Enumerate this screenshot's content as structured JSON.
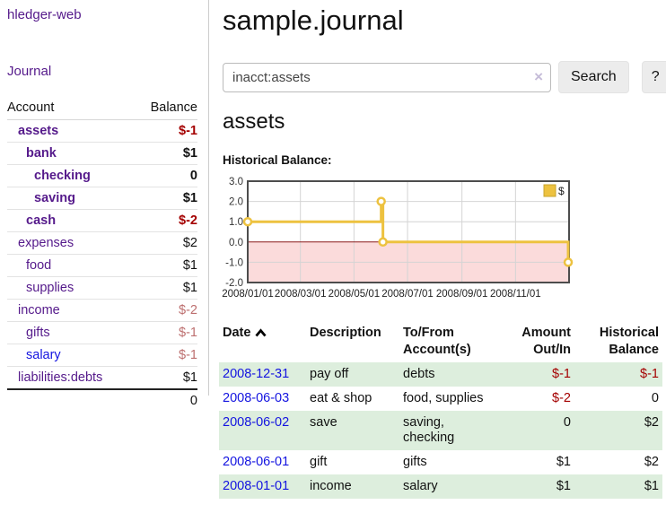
{
  "colors": {
    "link_purple": "#551a8b",
    "link_blue": "#1414e0",
    "negative": "#a40000",
    "negative_muted": "#bd6f6f",
    "row_stripe_green": "#ddeedd",
    "series_gold": "#edc240"
  },
  "sidebar": {
    "app_title": "hledger-web",
    "journal_label": "Journal",
    "accounts": {
      "header_account": "Account",
      "header_balance": "Balance",
      "rows": [
        {
          "name": "assets",
          "balance": "$-1",
          "name_class": "lvl1 emph",
          "bal_class": "emph neg-strong"
        },
        {
          "name": "bank",
          "balance": "$1",
          "name_class": "lvl2 emph",
          "bal_class": "emph"
        },
        {
          "name": "checking",
          "balance": "0",
          "name_class": "lvl3 emph",
          "bal_class": "emph"
        },
        {
          "name": "saving",
          "balance": "$1",
          "name_class": "lvl3 emph",
          "bal_class": "emph"
        },
        {
          "name": "cash",
          "balance": "$-2",
          "name_class": "lvl2 emph",
          "bal_class": "emph neg-strong"
        },
        {
          "name": "expenses",
          "balance": "$2",
          "name_class": "lvl1",
          "bal_class": ""
        },
        {
          "name": "food",
          "balance": "$1",
          "name_class": "lvl2",
          "bal_class": ""
        },
        {
          "name": "supplies",
          "balance": "$1",
          "name_class": "lvl2",
          "bal_class": ""
        },
        {
          "name": "income",
          "balance": "$-2",
          "name_class": "lvl1",
          "bal_class": "neg-muted"
        },
        {
          "name": "gifts",
          "balance": "$-1",
          "name_class": "lvl2",
          "bal_class": "neg-muted"
        },
        {
          "name": "salary",
          "balance": "$-1",
          "name_class": "lvl2 link-blue",
          "bal_class": "neg-muted"
        },
        {
          "name": "liabilities:debts",
          "balance": "$1",
          "name_class": "lvl1",
          "bal_class": ""
        }
      ],
      "total": "0"
    }
  },
  "main": {
    "title": "sample.journal",
    "search": {
      "value": "inacct:assets",
      "clear_icon": "×",
      "search_label": "Search",
      "help_label": "?"
    },
    "section_heading": "assets",
    "chart_label": "Historical Balance:"
  },
  "chart_data": {
    "type": "line",
    "step": true,
    "title": "Historical Balance",
    "series": [
      {
        "name": "$",
        "color": "#edc240",
        "points": [
          [
            "2008-01-01",
            1
          ],
          [
            "2008-06-01",
            2
          ],
          [
            "2008-06-03",
            0
          ],
          [
            "2008-12-31",
            -1
          ]
        ]
      }
    ],
    "x_ticks": [
      "2008/01/01",
      "2008/03/01",
      "2008/05/01",
      "2008/07/01",
      "2008/09/01",
      "2008/11/01"
    ],
    "y_ticks": [
      3.0,
      2.0,
      1.0,
      0.0,
      -1.0,
      -2.0
    ],
    "xlim": [
      "2008-01-01",
      "2009-01-01"
    ],
    "ylim": [
      -2,
      3
    ],
    "grid": true,
    "negative_region_fill": "#fbdbdb",
    "zero_line_color": "#8b1a1a",
    "legend": {
      "label": "$",
      "position": "top-right"
    }
  },
  "transactions": {
    "headers": {
      "date": "Date",
      "description": "Description",
      "tofrom_line1": "To/From",
      "tofrom_line2": "Account(s)",
      "amount_line1": "Amount",
      "amount_line2": "Out/In",
      "balance_line1": "Historical",
      "balance_line2": "Balance"
    },
    "rows": [
      {
        "date": "2008-12-31",
        "description": "pay off",
        "accounts": "debts",
        "amount": "$-1",
        "amount_class": "neg-strong",
        "balance": "$-1",
        "balance_class": "neg-strong"
      },
      {
        "date": "2008-06-03",
        "description": "eat & shop",
        "accounts": "food, supplies",
        "amount": "$-2",
        "amount_class": "neg-strong",
        "balance": "0",
        "balance_class": ""
      },
      {
        "date": "2008-06-02",
        "description": "save",
        "accounts": "saving, checking",
        "amount": "0",
        "amount_class": "",
        "balance": "$2",
        "balance_class": ""
      },
      {
        "date": "2008-06-01",
        "description": "gift",
        "accounts": "gifts",
        "amount": "$1",
        "amount_class": "",
        "balance": "$2",
        "balance_class": ""
      },
      {
        "date": "2008-01-01",
        "description": "income",
        "accounts": "salary",
        "amount": "$1",
        "amount_class": "",
        "balance": "$1",
        "balance_class": ""
      }
    ]
  }
}
